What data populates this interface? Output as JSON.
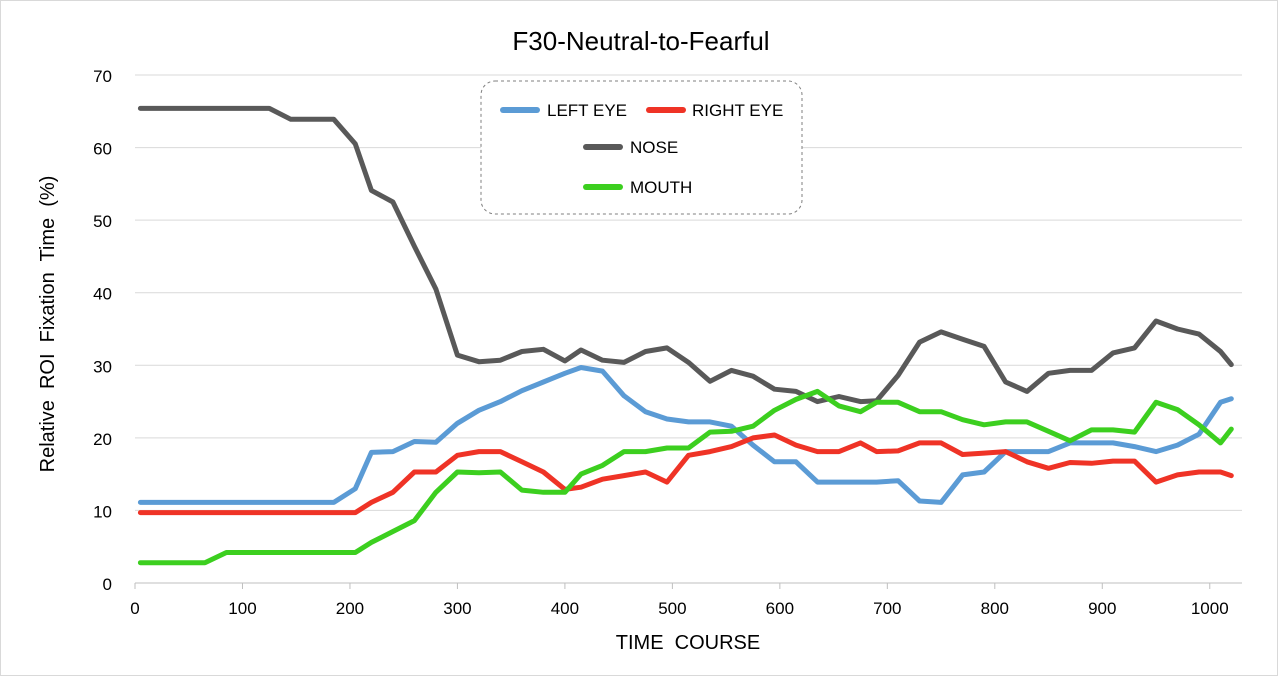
{
  "chart_data": {
    "type": "line",
    "title": "F30-Neutral-to-Fearful",
    "xlabel": "TIME  COURSE",
    "ylabel": "Relative  ROI  Fixation  Time  (%)",
    "xlim": [
      0,
      1030
    ],
    "ylim": [
      0,
      70
    ],
    "xticks": [
      0,
      100,
      200,
      300,
      400,
      500,
      600,
      700,
      800,
      900,
      1000
    ],
    "yticks": [
      0,
      10,
      20,
      30,
      40,
      50,
      60,
      70
    ],
    "grid": "horizontal",
    "legend_position": "top-center",
    "x": [
      5,
      25,
      45,
      65,
      85,
      105,
      125,
      145,
      165,
      185,
      205,
      220,
      240,
      260,
      280,
      300,
      320,
      340,
      360,
      380,
      400,
      415,
      435,
      455,
      475,
      495,
      515,
      535,
      555,
      575,
      595,
      615,
      635,
      655,
      675,
      690,
      710,
      730,
      750,
      770,
      790,
      810,
      830,
      850,
      870,
      890,
      910,
      930,
      950,
      970,
      990,
      1010,
      1020
    ],
    "series": [
      {
        "name": "LEFT EYE",
        "color": "#5b9bd5",
        "values": [
          11.1,
          11.1,
          11.1,
          11.1,
          11.1,
          11.1,
          11.1,
          11.1,
          11.1,
          11.1,
          13.0,
          18.0,
          18.1,
          19.5,
          19.4,
          22.0,
          23.8,
          25.0,
          26.5,
          27.7,
          28.9,
          29.7,
          29.2,
          25.8,
          23.6,
          22.6,
          22.2,
          22.2,
          21.6,
          19.0,
          16.7,
          16.7,
          13.9,
          13.9,
          13.9,
          13.9,
          14.1,
          11.3,
          11.1,
          14.9,
          15.3,
          18.1,
          18.1,
          18.1,
          19.3,
          19.3,
          19.3,
          18.8,
          18.1,
          19.0,
          20.5,
          24.9,
          25.4
        ]
      },
      {
        "name": "RIGHT EYE",
        "color": "#ef3326",
        "values": [
          9.7,
          9.7,
          9.7,
          9.7,
          9.7,
          9.7,
          9.7,
          9.7,
          9.7,
          9.7,
          9.7,
          11.1,
          12.5,
          15.3,
          15.3,
          17.6,
          18.1,
          18.1,
          16.7,
          15.3,
          12.9,
          13.2,
          14.3,
          14.8,
          15.3,
          13.9,
          17.6,
          18.1,
          18.8,
          20.0,
          20.4,
          19.0,
          18.1,
          18.1,
          19.3,
          18.1,
          18.2,
          19.3,
          19.3,
          17.7,
          17.9,
          18.1,
          16.7,
          15.8,
          16.6,
          16.5,
          16.8,
          16.8,
          13.9,
          14.9,
          15.3,
          15.3,
          14.8
        ]
      },
      {
        "name": "NOSE",
        "color": "#595959",
        "values": [
          65.4,
          65.4,
          65.4,
          65.4,
          65.4,
          65.4,
          65.4,
          63.9,
          63.9,
          63.9,
          60.5,
          54.1,
          52.5,
          46.4,
          40.5,
          31.4,
          30.5,
          30.7,
          31.9,
          32.2,
          30.6,
          32.1,
          30.7,
          30.4,
          31.9,
          32.4,
          30.4,
          27.8,
          29.3,
          28.5,
          26.7,
          26.4,
          25.0,
          25.7,
          25.0,
          25.1,
          28.6,
          33.2,
          34.6,
          33.6,
          32.6,
          27.7,
          26.4,
          28.9,
          29.3,
          29.3,
          31.7,
          32.4,
          36.1,
          35.0,
          34.3,
          31.9,
          30.1
        ]
      },
      {
        "name": "MOUTH",
        "color": "#3ccf1f",
        "values": [
          2.8,
          2.8,
          2.8,
          2.8,
          4.2,
          4.2,
          4.2,
          4.2,
          4.2,
          4.2,
          4.2,
          5.6,
          7.1,
          8.6,
          12.5,
          15.3,
          15.2,
          15.3,
          12.8,
          12.5,
          12.5,
          15.0,
          16.2,
          18.1,
          18.1,
          18.6,
          18.6,
          20.8,
          20.9,
          21.6,
          23.8,
          25.3,
          26.4,
          24.4,
          23.6,
          24.9,
          24.9,
          23.6,
          23.6,
          22.5,
          21.8,
          22.2,
          22.2,
          20.9,
          19.6,
          21.1,
          21.1,
          20.8,
          24.9,
          23.9,
          21.8,
          19.3,
          21.2
        ]
      }
    ]
  }
}
